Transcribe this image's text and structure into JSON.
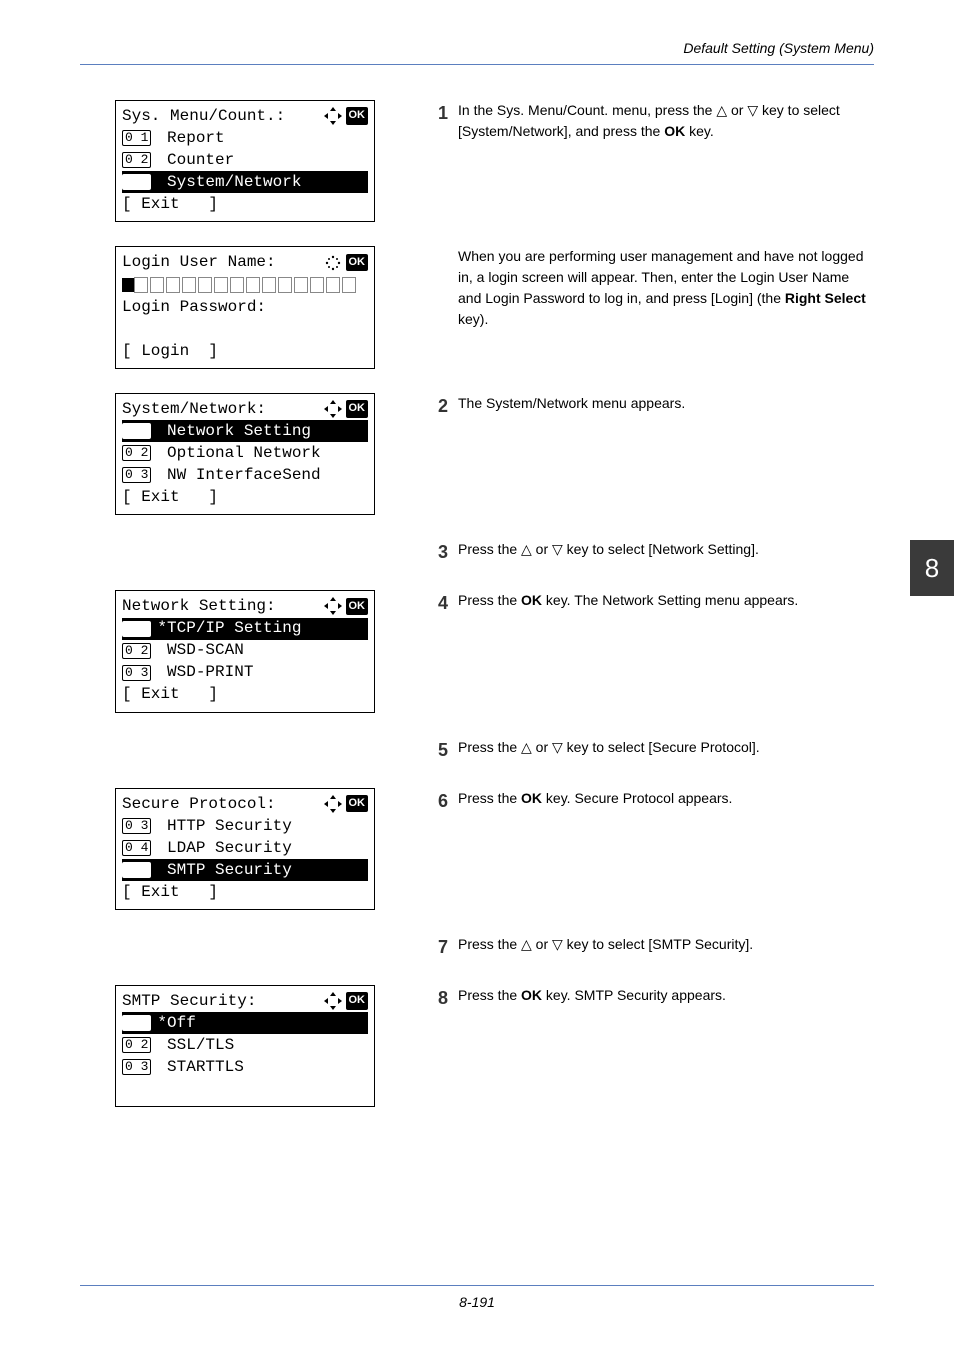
{
  "header": {
    "section_title": "Default Setting (System Menu)"
  },
  "footer": {
    "page_number": "8-191"
  },
  "side_tab": {
    "number": "8",
    "bg": "#3a3a3a",
    "fg": "#ffffff"
  },
  "lcd1": {
    "title": "Sys. Menu/Count.:",
    "icons": [
      "nav4",
      "ok"
    ],
    "lines": [
      {
        "num": "1",
        "text": "Report",
        "hl": false
      },
      {
        "num": "2",
        "text": "Counter",
        "hl": false
      },
      {
        "num": "3",
        "text": "System/Network",
        "hl": true
      }
    ],
    "softkey": "[ Exit   ]"
  },
  "lcd2": {
    "title": "Login User Name:",
    "icons": [
      "dots",
      "ok"
    ],
    "line2_label": "Login Password:",
    "softkey": "[ Login  ]"
  },
  "lcd3": {
    "title": "System/Network:",
    "icons": [
      "nav4",
      "ok"
    ],
    "lines": [
      {
        "num": "1",
        "text": "Network Setting",
        "hl": true
      },
      {
        "num": "2",
        "text": "Optional Network",
        "hl": false
      },
      {
        "num": "3",
        "text": "NW InterfaceSend",
        "hl": false
      }
    ],
    "softkey": "[ Exit   ]"
  },
  "lcd4": {
    "title": "Network Setting:",
    "icons": [
      "nav4",
      "ok"
    ],
    "lines": [
      {
        "num": "1",
        "text": "*TCP/IP Setting",
        "hl": true
      },
      {
        "num": "2",
        "text": "WSD-SCAN",
        "hl": false
      },
      {
        "num": "3",
        "text": "WSD-PRINT",
        "hl": false
      }
    ],
    "softkey": "[ Exit   ]"
  },
  "lcd5": {
    "title": "Secure Protocol:",
    "icons": [
      "nav4",
      "ok"
    ],
    "lines": [
      {
        "num": "3",
        "text": "HTTP Security",
        "hl": false
      },
      {
        "num": "4",
        "text": "LDAP Security",
        "hl": false
      },
      {
        "num": "5",
        "text": "SMTP Security",
        "hl": true
      }
    ],
    "softkey": "[ Exit   ]"
  },
  "lcd6": {
    "title": "SMTP Security:",
    "icons": [
      "nav4",
      "ok"
    ],
    "lines": [
      {
        "num": "1",
        "text": "*Off",
        "hl": true
      },
      {
        "num": "2",
        "text": "SSL/TLS",
        "hl": false
      },
      {
        "num": "3",
        "text": "STARTTLS",
        "hl": false
      }
    ],
    "softkey": ""
  },
  "steps": {
    "s1": "In the Sys. Menu/Count. menu, press the △ or ▽ key to select [System/Network], and press the <b>OK</b> key.",
    "note1": "When you are performing user management and have not logged in, a login screen will appear. Then, enter the Login User Name and Login Password to log in, and press [Login] (the <b>Right Select</b> key).",
    "s2": "The System/Network menu appears.",
    "s3": "Press the △ or ▽ key to select [Network Setting].",
    "s4": "Press the <b>OK</b> key. The Network Setting menu appears.",
    "s5": "Press the △ or ▽ key to select [Secure Protocol].",
    "s6": "Press the <b>OK</b> key. Secure Protocol appears.",
    "s7": "Press the △ or ▽ key to select [SMTP Security].",
    "s8": "Press the <b>OK</b> key. SMTP Security appears."
  }
}
